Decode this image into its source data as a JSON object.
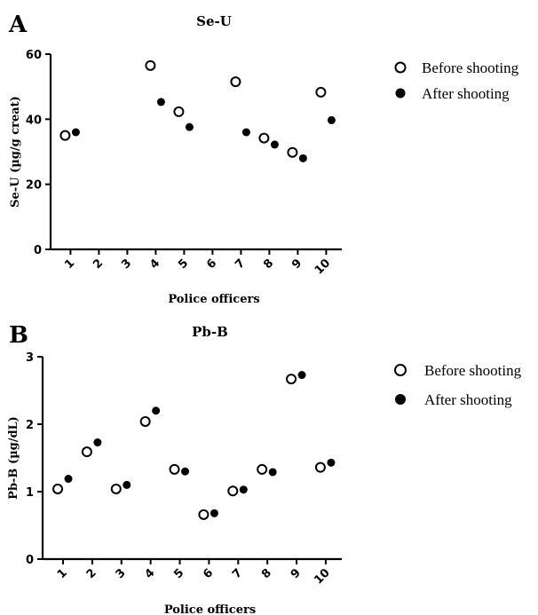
{
  "chart_data": [
    {
      "panel": "A",
      "type": "scatter",
      "title": "Se-U",
      "xlabel": "Police officers",
      "ylabel": "Se-U (µg/g creat)",
      "categories": [
        "1",
        "2",
        "3",
        "4",
        "5",
        "6",
        "7",
        "8",
        "9",
        "10"
      ],
      "ylim": [
        0,
        60
      ],
      "yticks": [
        "0",
        "20",
        "40",
        "60"
      ],
      "legend_position": "right",
      "series": [
        {
          "name": "Before shooting",
          "marker": "open-circle",
          "values": [
            35,
            null,
            null,
            56.5,
            42.3,
            null,
            51.5,
            34.2,
            29.8,
            48.3
          ]
        },
        {
          "name": "After shooting",
          "marker": "filled-circle",
          "values": [
            36,
            null,
            null,
            45.3,
            37.6,
            null,
            36,
            32.2,
            28,
            39.7
          ]
        }
      ]
    },
    {
      "panel": "B",
      "type": "scatter",
      "title": "Pb-B",
      "xlabel": "Police officers",
      "ylabel": "Pb-B (µg/dL)",
      "categories": [
        "1",
        "2",
        "3",
        "4",
        "5",
        "6",
        "7",
        "8",
        "9",
        "10"
      ],
      "ylim": [
        0,
        3
      ],
      "yticks": [
        "0",
        "1",
        "2",
        "3"
      ],
      "legend_position": "right",
      "series": [
        {
          "name": "Before shooting",
          "marker": "open-circle",
          "values": [
            1.04,
            1.59,
            1.04,
            2.04,
            1.33,
            0.66,
            1.01,
            1.33,
            2.67,
            1.36
          ]
        },
        {
          "name": "After shooting",
          "marker": "filled-circle",
          "values": [
            1.19,
            1.73,
            1.1,
            2.2,
            1.3,
            0.68,
            1.03,
            1.29,
            2.73,
            1.43
          ]
        }
      ]
    }
  ]
}
